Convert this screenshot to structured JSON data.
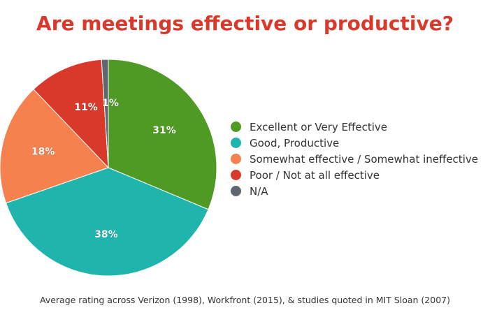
{
  "chart_data": {
    "type": "pie",
    "title": "Are meetings effective or productive?",
    "categories": [
      "Excellent or Very Effective",
      "Good, Productive",
      "Somewhat effective / Somewhat ineffective",
      "Poor / Not at all effective",
      "N/A"
    ],
    "values": [
      31,
      38,
      18,
      11,
      1
    ],
    "data_labels": [
      "31%",
      "38%",
      "18%",
      "11%",
      "1%"
    ],
    "colors": [
      "#4e9a22",
      "#1fb5ad",
      "#f5814e",
      "#d9392b",
      "#5f6670"
    ],
    "legend_position": "right",
    "caption": "Average rating across Verizon (1998), Workfront (2015), & studies quoted in MIT Sloan (2007)"
  },
  "style": {
    "title_color": "#d9392b",
    "text_color": "#333333",
    "label_color": "#ffffff"
  }
}
